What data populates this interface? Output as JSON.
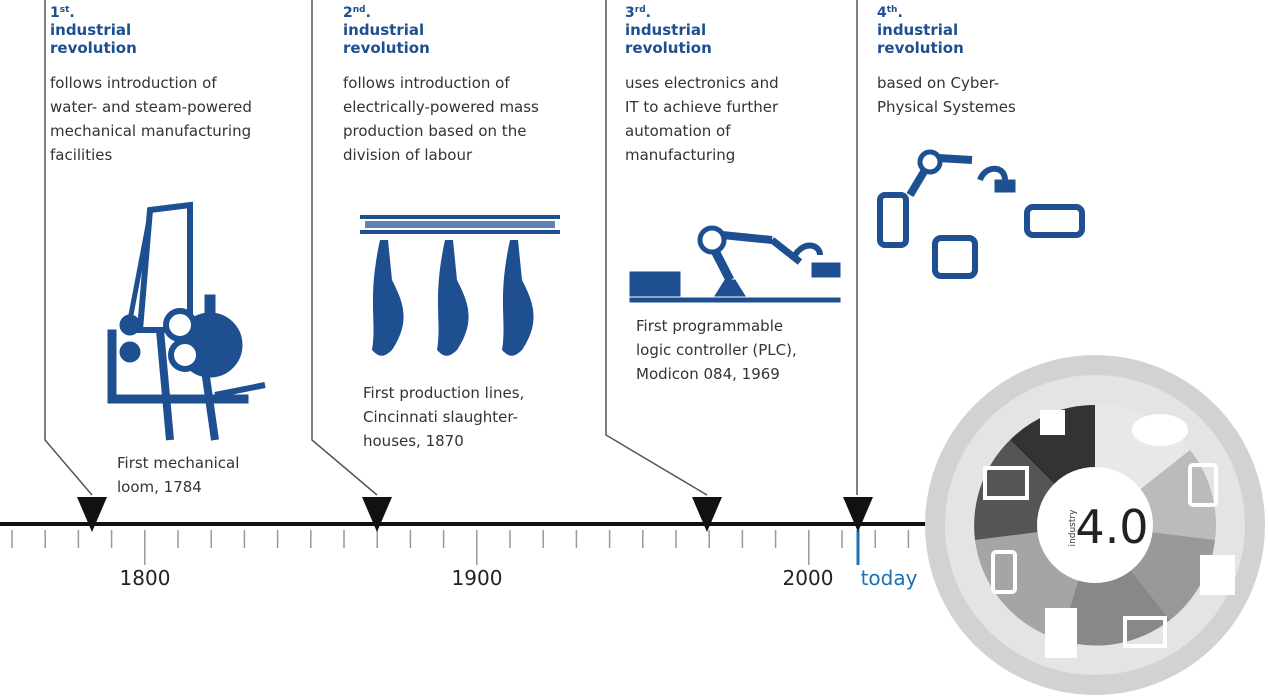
{
  "revolutions": [
    {
      "number": "1",
      "suffix": "st",
      "dot": ".",
      "label": "industrial revolution",
      "description": [
        "follows introduction of",
        "water- and steam-powered",
        "mechanical manufacturing",
        "facilities"
      ],
      "milestone": [
        "First mechanical",
        "loom, 1784"
      ]
    },
    {
      "number": "2",
      "suffix": "nd",
      "dot": ".",
      "label": "industrial revolution",
      "description": [
        "follows introduction of",
        "electrically-powered mass",
        "production based on the",
        "division of labour"
      ],
      "milestone": [
        "First production lines,",
        "Cincinnati slaughter-",
        "houses, 1870"
      ]
    },
    {
      "number": "3",
      "suffix": "rd",
      "dot": ".",
      "label": "industrial revolution",
      "description": [
        "uses electronics and",
        "IT to achieve further",
        "automation of",
        "manufacturing"
      ],
      "milestone": [
        "First programmable",
        "logic controller (PLC),",
        "Modicon 084, 1969"
      ]
    },
    {
      "number": "4",
      "suffix": "th",
      "dot": ".",
      "label": "industrial revolution",
      "description": [
        "based on Cyber-",
        "Physical Systemes"
      ],
      "milestone": []
    }
  ],
  "axis_labels": [
    "1800",
    "1900",
    "2000",
    "today"
  ],
  "badge": {
    "small": "industry",
    "big": "4.0"
  }
}
